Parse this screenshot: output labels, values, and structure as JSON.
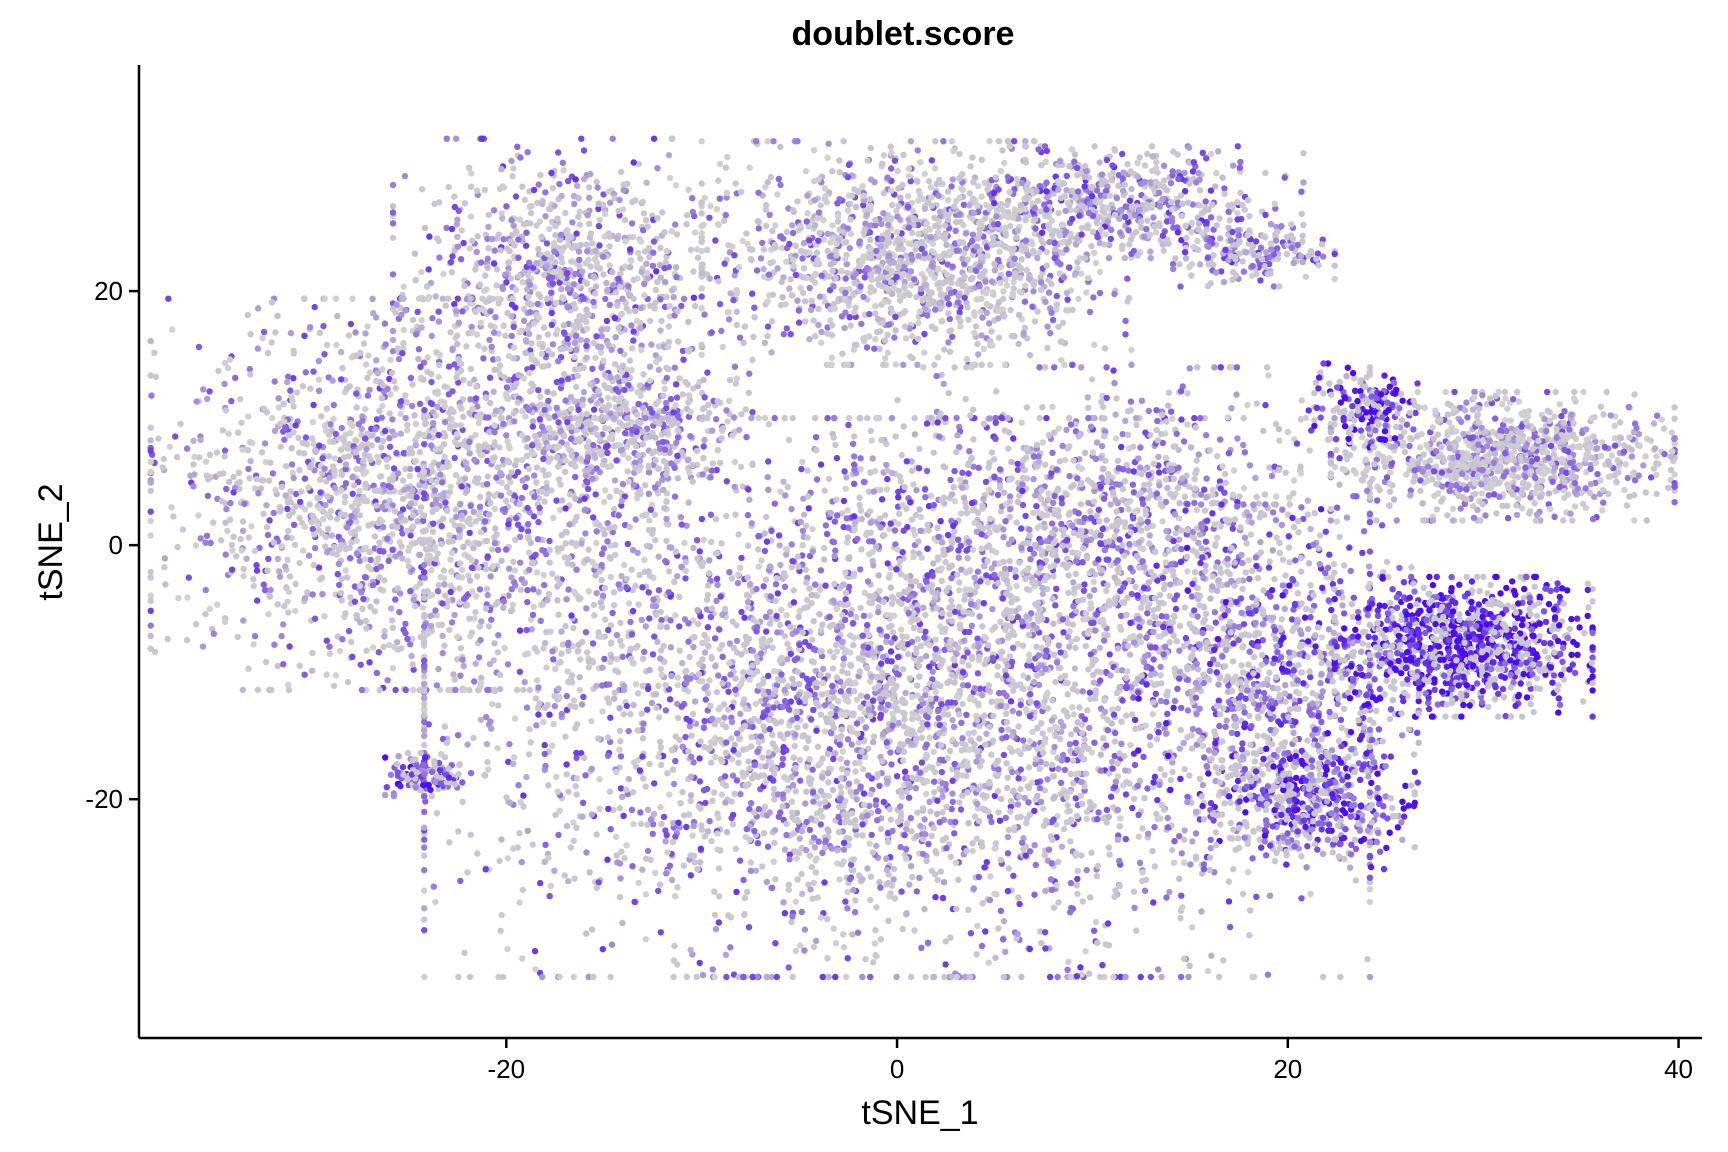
{
  "chart_data": {
    "type": "scatter",
    "title": "doublet.score",
    "xlabel": "tSNE_1",
    "ylabel": "tSNE_2",
    "xlim": [
      -38.8,
      41.2
    ],
    "ylim": [
      -38.8,
      37.8
    ],
    "xticks": [
      -20,
      0,
      20,
      40
    ],
    "yticks": [
      -20,
      0,
      20
    ],
    "grid": false,
    "legend": "none",
    "color_low": "#d0d0d0",
    "color_high": "#4a0cf0",
    "clusters": [
      {
        "name": "",
        "cx": -17,
        "cy": 21,
        "sx": 4,
        "sy": 5,
        "n": 900,
        "score": 0.35
      },
      {
        "name": "",
        "cx": -25,
        "cy": 4,
        "sx": 6,
        "sy": 7,
        "n": 1800,
        "score": 0.3
      },
      {
        "name": "",
        "cx": -14,
        "cy": 9,
        "sx": 3,
        "sy": 3,
        "n": 500,
        "score": 0.3
      },
      {
        "name": "",
        "cx": 1,
        "cy": 23,
        "sx": 5,
        "sy": 4,
        "n": 1400,
        "score": 0.25
      },
      {
        "name": "",
        "cx": 12,
        "cy": 27,
        "sx": 4,
        "sy": 2,
        "n": 500,
        "score": 0.4
      },
      {
        "name": "",
        "cx": 18,
        "cy": 23,
        "sx": 2,
        "sy": 1.2,
        "n": 180,
        "score": 0.4
      },
      {
        "name": "",
        "cx": 0,
        "cy": -12,
        "sx": 11,
        "sy": 10,
        "n": 4500,
        "score": 0.35
      },
      {
        "name": "",
        "cx": 11,
        "cy": 3,
        "sx": 6,
        "sy": 5,
        "n": 900,
        "score": 0.35
      },
      {
        "name": "",
        "cx": 19,
        "cy": -10,
        "sx": 3.5,
        "sy": 6,
        "n": 700,
        "score": 0.55
      },
      {
        "name": "",
        "cx": 21,
        "cy": -20,
        "sx": 2.5,
        "sy": 2.5,
        "n": 500,
        "score": 0.65
      },
      {
        "name": "",
        "cx": 29,
        "cy": -8,
        "sx": 3,
        "sy": 2.5,
        "n": 1000,
        "score": 0.9
      },
      {
        "name": "",
        "cx": 31,
        "cy": 7,
        "sx": 4,
        "sy": 2.3,
        "n": 1000,
        "score": 0.25
      },
      {
        "name": "",
        "cx": 24,
        "cy": 11,
        "sx": 1.2,
        "sy": 1.5,
        "n": 160,
        "score": 0.9
      },
      {
        "name": "",
        "cx": -24,
        "cy": -18,
        "sx": 1,
        "sy": 0.8,
        "n": 120,
        "score": 0.7
      }
    ]
  }
}
